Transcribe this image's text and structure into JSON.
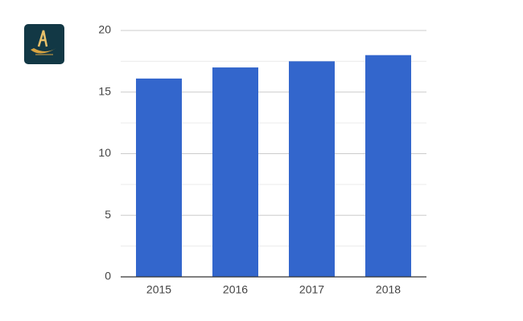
{
  "chart_data": {
    "type": "bar",
    "categories": [
      "2015",
      "2016",
      "2017",
      "2018"
    ],
    "values": [
      16.1,
      17,
      17.5,
      18
    ],
    "color": "#3366cc",
    "ylim": [
      0,
      20
    ],
    "yticks": [
      0,
      5,
      10,
      15,
      20
    ],
    "grid": true,
    "minor_grid": true
  }
}
